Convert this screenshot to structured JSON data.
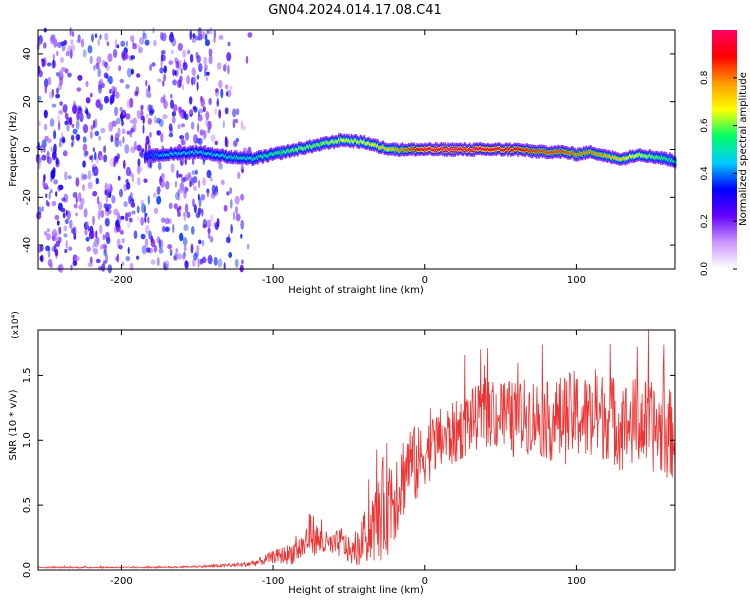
{
  "title": "GN04.2024.014.17.08.C41",
  "chart_data": [
    {
      "type": "heatmap",
      "title": "",
      "xlabel": "Height of straight line (km)",
      "ylabel": "Frequency (Hz)",
      "xlim": [
        -255,
        165
      ],
      "ylim": [
        -50,
        50
      ],
      "x_ticks": [
        -200,
        -100,
        0,
        100
      ],
      "x_tick_labels": [
        "-200",
        "-100",
        "0",
        "100"
      ],
      "y_ticks": [
        -40,
        -20,
        0,
        20,
        40
      ],
      "y_tick_labels": [
        "-40",
        "-20",
        "0",
        "20",
        "40"
      ],
      "colorbar": {
        "label": "Normalized spectral amplitude",
        "range": [
          0,
          1
        ],
        "ticks": [
          0.0,
          0.2,
          0.4,
          0.6,
          0.8
        ],
        "tick_labels": [
          "0.0",
          "0.2",
          "0.4",
          "0.6",
          "0.8"
        ],
        "colors": [
          "#ffffff",
          "#cc99ff",
          "#6600ff",
          "#0000ff",
          "#00ccff",
          "#00ff66",
          "#ffff00",
          "#ff9900",
          "#ff0000",
          "#ff0066"
        ]
      },
      "ridge": {
        "description": "main spectral line (frequency vs height)",
        "x": [
          -185,
          -170,
          -150,
          -130,
          -115,
          -100,
          -85,
          -70,
          -55,
          -40,
          -30,
          -20,
          -10,
          0,
          20,
          40,
          60,
          75,
          90,
          100,
          110,
          120,
          130,
          140,
          150,
          160,
          165
        ],
        "y": [
          -3,
          -2,
          -1,
          -3,
          -4,
          -2,
          0,
          2,
          4,
          3,
          1,
          0,
          0,
          0,
          0,
          0,
          0,
          -1,
          -1,
          -2,
          -1,
          -3,
          -4,
          -2,
          -3,
          -4,
          -5
        ],
        "amplitude": [
          0.35,
          0.45,
          0.45,
          0.5,
          0.5,
          0.55,
          0.6,
          0.6,
          0.65,
          0.65,
          0.7,
          0.75,
          0.85,
          0.95,
          0.98,
          0.95,
          0.9,
          0.85,
          0.85,
          0.8,
          0.8,
          0.75,
          0.7,
          0.65,
          0.6,
          0.55,
          0.5
        ]
      },
      "noise_region": {
        "x_range": [
          -255,
          -115
        ],
        "y_range": [
          -50,
          50
        ]
      }
    },
    {
      "type": "line",
      "title": "",
      "xlabel": "Height of straight line (km)",
      "ylabel": "SNR (10 * v/v)",
      "y_multiplier": "(x10⁴)",
      "xlim": [
        -255,
        165
      ],
      "ylim": [
        0,
        1.85
      ],
      "x_ticks": [
        -200,
        -100,
        0,
        100
      ],
      "x_tick_labels": [
        "-200",
        "-100",
        "0",
        "100"
      ],
      "y_ticks": [
        0.0,
        0.5,
        1.0,
        1.5
      ],
      "y_tick_labels": [
        "0.0",
        "0.5",
        "1.0",
        "1.5"
      ],
      "color": "#ee3333",
      "series": [
        {
          "x": [
            -255,
            -230,
            -200,
            -170,
            -140,
            -120,
            -110,
            -100,
            -90,
            -80,
            -75,
            -70,
            -65,
            -60,
            -55,
            -50,
            -45,
            -40,
            -35,
            -30,
            -25,
            -20,
            -15,
            -10,
            -5,
            0,
            10,
            20,
            30,
            40,
            50,
            60,
            70,
            80,
            90,
            100,
            110,
            120,
            130,
            140,
            150,
            160,
            165
          ],
          "y": [
            0.02,
            0.02,
            0.02,
            0.02,
            0.03,
            0.04,
            0.06,
            0.1,
            0.12,
            0.18,
            0.3,
            0.22,
            0.2,
            0.18,
            0.22,
            0.15,
            0.12,
            0.25,
            0.3,
            0.4,
            0.55,
            0.6,
            0.7,
            0.85,
            0.8,
            0.9,
            1.0,
            1.05,
            1.15,
            1.2,
            1.2,
            1.15,
            1.2,
            1.15,
            1.15,
            1.2,
            1.15,
            1.2,
            1.1,
            1.15,
            1.1,
            1.05,
            1.05
          ],
          "spread": [
            0.005,
            0.005,
            0.005,
            0.005,
            0.01,
            0.02,
            0.03,
            0.05,
            0.08,
            0.12,
            0.18,
            0.12,
            0.1,
            0.1,
            0.12,
            0.1,
            0.1,
            0.2,
            0.25,
            0.35,
            0.45,
            0.4,
            0.35,
            0.3,
            0.3,
            0.25,
            0.25,
            0.25,
            0.25,
            0.25,
            0.3,
            0.3,
            0.3,
            0.3,
            0.35,
            0.35,
            0.35,
            0.35,
            0.35,
            0.35,
            0.35,
            0.35,
            0.35
          ]
        }
      ]
    }
  ]
}
